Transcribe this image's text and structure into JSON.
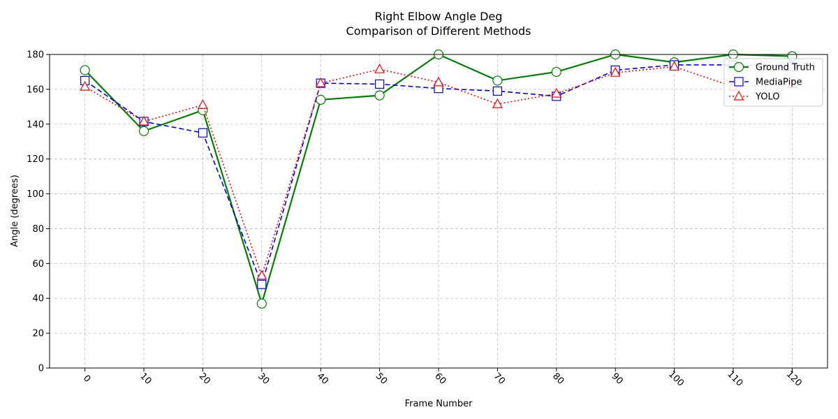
{
  "chart_data": {
    "type": "line",
    "title": "Right Elbow Angle Deg",
    "subtitle": "Comparison of Different Methods",
    "xlabel": "Frame Number",
    "ylabel": "Angle (degrees)",
    "x": [
      0,
      10,
      20,
      30,
      40,
      50,
      60,
      70,
      80,
      90,
      100,
      110,
      120
    ],
    "xlim": [
      -6,
      126
    ],
    "ylim": [
      0,
      180
    ],
    "yticks": [
      0,
      20,
      40,
      60,
      80,
      100,
      120,
      140,
      160,
      180
    ],
    "grid": true,
    "legend_position": "top-right",
    "series": [
      {
        "name": "Ground Truth",
        "color": "#008000",
        "line_style": "solid",
        "marker": "circle",
        "values": [
          171,
          136,
          148,
          37,
          154,
          156.5,
          180,
          165,
          170,
          180,
          175.5,
          180,
          179
        ]
      },
      {
        "name": "MediaPipe",
        "color": "#0000ff",
        "line_style": "dashed",
        "marker": "square",
        "values": [
          165,
          141.5,
          135,
          48,
          163.5,
          163,
          160.5,
          159,
          156,
          171,
          174,
          174,
          173
        ]
      },
      {
        "name": "YOLO",
        "color": "#ff0000",
        "line_style": "dotted",
        "marker": "triangle",
        "values": [
          161.5,
          141.5,
          151,
          53,
          163.5,
          171.5,
          164,
          151.5,
          157.5,
          169.5,
          173,
          161.5,
          163
        ]
      }
    ]
  }
}
